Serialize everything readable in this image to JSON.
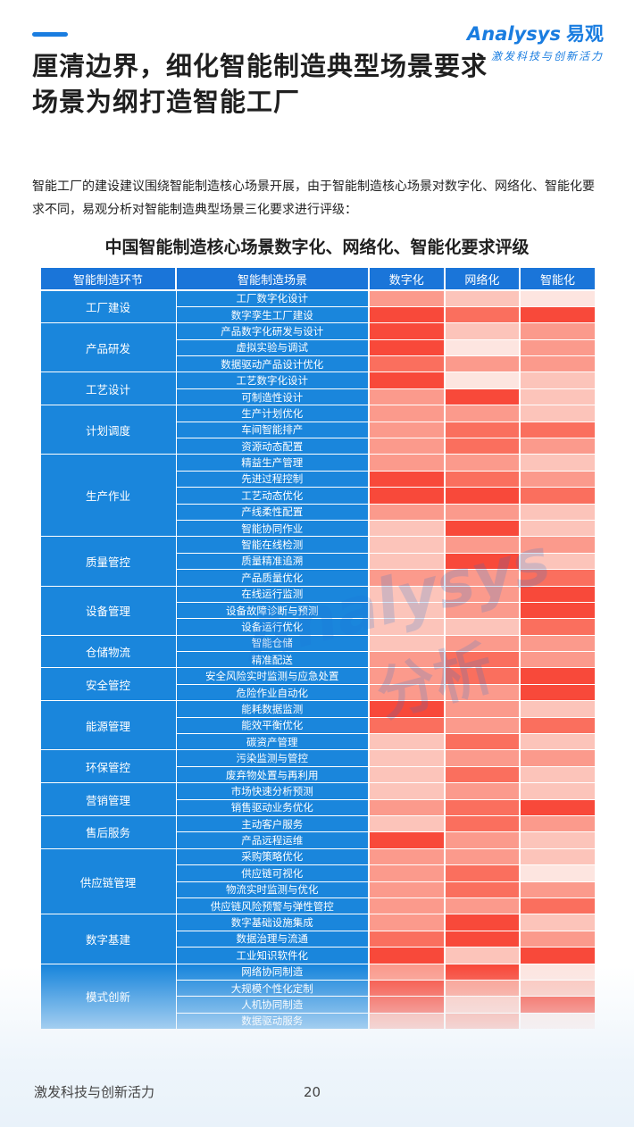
{
  "header": {
    "title_line1": "厘清边界，细化智能制造典型场景要求",
    "title_line2": "场景为纲打造智能工厂",
    "logo_text": "Analysys",
    "logo_cn": "易观",
    "logo_slogan": "激发科技与创新活力"
  },
  "intro": "智能工厂的建设建议围绕智能制造核心场景开展，由于智能制造核心场景对数字化、网络化、智能化要求不同，易观分析对智能制造典型场景三化要求进行评级：",
  "colors": {
    "header_bg": "#1a75d9",
    "row_bg": "#1a86dc",
    "heat_low": "#fde1dc",
    "heat_high": "#fa4535"
  },
  "chart_data": {
    "type": "heatmap",
    "title": "中国智能制造核心场景数字化、网络化、智能化要求评级",
    "columns": [
      "智能制造环节",
      "智能制造场景",
      "数字化",
      "网络化",
      "智能化"
    ],
    "metrics": [
      "数字化",
      "网络化",
      "智能化"
    ],
    "scale": "1 = lowest requirement (light pink), 5 = highest requirement (deep red)",
    "groups": [
      {
        "stage": "工厂建设",
        "rows": [
          {
            "scene": "工厂数字化设计",
            "values": [
              3,
              2,
              1
            ]
          },
          {
            "scene": "数字孪生工厂建设",
            "values": [
              5,
              4,
              5
            ]
          }
        ]
      },
      {
        "stage": "产品研发",
        "rows": [
          {
            "scene": "产品数字化研发与设计",
            "values": [
              5,
              2,
              3
            ]
          },
          {
            "scene": "虚拟实验与调试",
            "values": [
              5,
              1,
              3
            ]
          },
          {
            "scene": "数据驱动产品设计优化",
            "values": [
              4,
              3,
              3
            ]
          }
        ]
      },
      {
        "stage": "工艺设计",
        "rows": [
          {
            "scene": "工艺数字化设计",
            "values": [
              5,
              1,
              2
            ]
          },
          {
            "scene": "可制造性设计",
            "values": [
              3,
              5,
              2
            ]
          }
        ]
      },
      {
        "stage": "计划调度",
        "rows": [
          {
            "scene": "生产计划优化",
            "values": [
              3,
              3,
              2
            ]
          },
          {
            "scene": "车间智能排产",
            "values": [
              3,
              4,
              4
            ]
          },
          {
            "scene": "资源动态配置",
            "values": [
              3,
              4,
              3
            ]
          }
        ]
      },
      {
        "stage": "生产作业",
        "rows": [
          {
            "scene": "精益生产管理",
            "values": [
              3,
              3,
              2
            ]
          },
          {
            "scene": "先进过程控制",
            "values": [
              5,
              4,
              3
            ]
          },
          {
            "scene": "工艺动态优化",
            "values": [
              5,
              5,
              4
            ]
          },
          {
            "scene": "产线柔性配置",
            "values": [
              3,
              3,
              2
            ]
          },
          {
            "scene": "智能协同作业",
            "values": [
              2,
              5,
              2
            ]
          }
        ]
      },
      {
        "stage": "质量管控",
        "rows": [
          {
            "scene": "智能在线检测",
            "values": [
              2,
              3,
              3
            ]
          },
          {
            "scene": "质量精准追溯",
            "values": [
              2,
              5,
              2
            ]
          },
          {
            "scene": "产品质量优化",
            "values": [
              3,
              3,
              4
            ]
          }
        ]
      },
      {
        "stage": "设备管理",
        "rows": [
          {
            "scene": "在线运行监测",
            "values": [
              2,
              3,
              5
            ]
          },
          {
            "scene": "设备故障诊断与预测",
            "values": [
              2,
              3,
              5
            ]
          },
          {
            "scene": "设备运行优化",
            "values": [
              2,
              2,
              4
            ]
          }
        ]
      },
      {
        "stage": "仓储物流",
        "rows": [
          {
            "scene": "智能仓储",
            "values": [
              2,
              3,
              3
            ]
          },
          {
            "scene": "精准配送",
            "values": [
              3,
              4,
              3
            ]
          }
        ]
      },
      {
        "stage": "安全管控",
        "rows": [
          {
            "scene": "安全风险实时监测与应急处置",
            "values": [
              3,
              4,
              5
            ]
          },
          {
            "scene": "危险作业自动化",
            "values": [
              3,
              3,
              5
            ]
          }
        ]
      },
      {
        "stage": "能源管理",
        "rows": [
          {
            "scene": "能耗数据监测",
            "values": [
              5,
              3,
              2
            ]
          },
          {
            "scene": "能效平衡优化",
            "values": [
              4,
              3,
              4
            ]
          },
          {
            "scene": "碳资产管理",
            "values": [
              2,
              4,
              2
            ]
          }
        ]
      },
      {
        "stage": "环保管控",
        "rows": [
          {
            "scene": "污染监测与管控",
            "values": [
              2,
              3,
              3
            ]
          },
          {
            "scene": "废弃物处置与再利用",
            "values": [
              2,
              4,
              2
            ]
          }
        ]
      },
      {
        "stage": "营销管理",
        "rows": [
          {
            "scene": "市场快速分析预测",
            "values": [
              2,
              3,
              2
            ]
          },
          {
            "scene": "销售驱动业务优化",
            "values": [
              3,
              4,
              5
            ]
          }
        ]
      },
      {
        "stage": "售后服务",
        "rows": [
          {
            "scene": "主动客户服务",
            "values": [
              2,
              4,
              3
            ]
          },
          {
            "scene": "产品远程运维",
            "values": [
              5,
              3,
              2
            ]
          }
        ]
      },
      {
        "stage": "供应链管理",
        "rows": [
          {
            "scene": "采购策略优化",
            "values": [
              3,
              3,
              2
            ]
          },
          {
            "scene": "供应链可视化",
            "values": [
              3,
              4,
              1
            ]
          },
          {
            "scene": "物流实时监测与优化",
            "values": [
              3,
              4,
              3
            ]
          },
          {
            "scene": "供应链风险预警与弹性管控",
            "values": [
              3,
              3,
              4
            ]
          }
        ]
      },
      {
        "stage": "数字基建",
        "rows": [
          {
            "scene": "数字基础设施集成",
            "values": [
              3,
              5,
              2
            ]
          },
          {
            "scene": "数据治理与流通",
            "values": [
              4,
              5,
              3
            ]
          },
          {
            "scene": "工业知识软件化",
            "values": [
              5,
              2,
              5
            ]
          }
        ]
      },
      {
        "stage": "模式创新",
        "rows": [
          {
            "scene": "网络协同制造",
            "values": [
              3,
              5,
              1
            ]
          },
          {
            "scene": "大规模个性化定制",
            "values": [
              5,
              3,
              2
            ]
          },
          {
            "scene": "人机协同制造",
            "values": [
              5,
              2,
              5
            ]
          },
          {
            "scene": "数据驱动服务",
            "values": [
              3,
              3,
              1
            ]
          }
        ]
      }
    ]
  },
  "footer": {
    "slogan": "激发科技与创新活力",
    "page": "20"
  }
}
